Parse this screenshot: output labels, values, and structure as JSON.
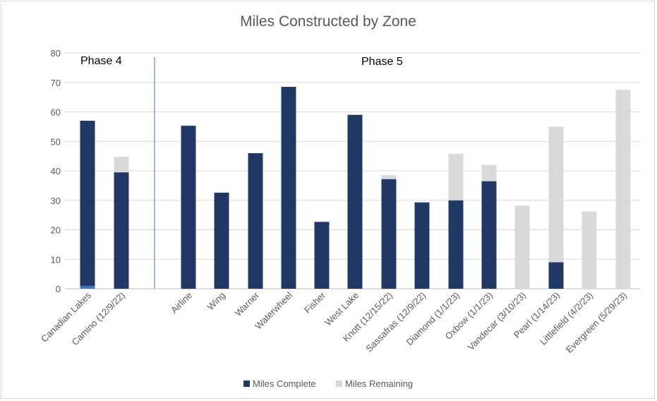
{
  "chart_data": {
    "type": "bar",
    "stacked": true,
    "title": "Miles Constructed by Zone",
    "xlabel": "",
    "ylabel": "",
    "ylim": [
      0,
      80
    ],
    "yticks": [
      0,
      10,
      20,
      30,
      40,
      50,
      60,
      70,
      80
    ],
    "grid": true,
    "legend_position": "bottom",
    "categories": [
      "Canadian Lakes",
      "Camino (12/9/22)",
      "Airline",
      "Wing",
      "Warner",
      "Waterwheel",
      "Fisher",
      "West Lake",
      "Knott (12/15/22)",
      "Sassafras (12/9/22)",
      "Diamond (1/1/23)",
      "Oxbow (1/1/23)",
      "Vandecar (3/10/23)",
      "Pearl (1/14/23)",
      "Littlefield (4/2/23)",
      "Evergreen (5/29/23)"
    ],
    "series": [
      {
        "name": "Miles Complete",
        "color": "#203864",
        "values": [
          57,
          39.5,
          55.3,
          32.6,
          46,
          68.5,
          22.7,
          59,
          37.2,
          29.3,
          30,
          36.5,
          0,
          9,
          0,
          0
        ]
      },
      {
        "name": "Miles Remaining",
        "color": "#d9d9d9",
        "values": [
          0,
          5.3,
          0,
          0,
          0,
          0,
          0,
          0,
          1.4,
          0,
          15.8,
          5.5,
          28.2,
          46,
          26.2,
          67.5
        ]
      }
    ],
    "annotations": [
      {
        "text": "Phase 4"
      },
      {
        "text": "Phase 5"
      }
    ]
  }
}
